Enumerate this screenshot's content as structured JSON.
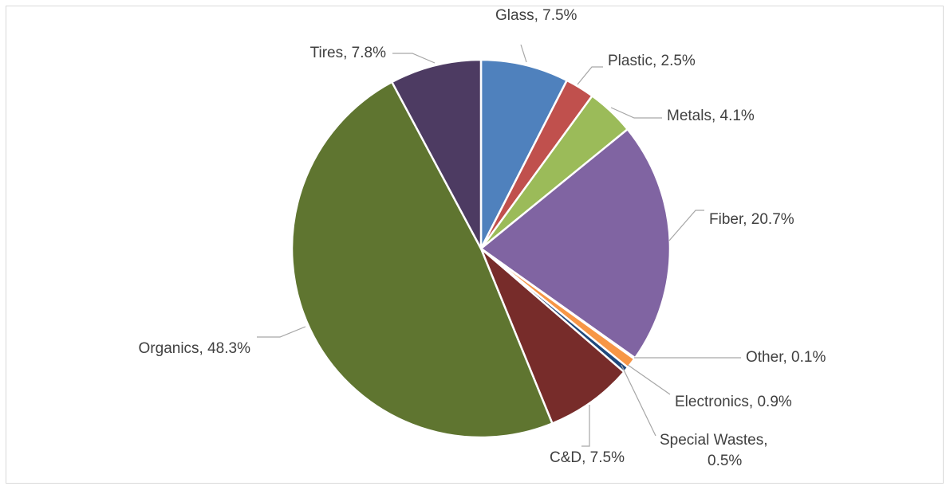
{
  "chart_data": {
    "type": "pie",
    "title": "",
    "categories": [
      "Glass",
      "Plastic",
      "Metals",
      "Fiber",
      "Other",
      "Electronics",
      "Special Wastes",
      "C&D",
      "Organics",
      "Tires"
    ],
    "values": [
      7.5,
      2.5,
      4.1,
      20.7,
      0.1,
      0.9,
      0.5,
      7.5,
      48.3,
      7.8
    ],
    "unit": "%",
    "colors": [
      "#4f81bd",
      "#c0504d",
      "#9bbb59",
      "#8064a2",
      "#4bacc6",
      "#f79646",
      "#1f497d",
      "#772c2a",
      "#5f7530",
      "#4d3b62"
    ],
    "data_labels": [
      [
        "Glass, 7.5%"
      ],
      [
        "Plastic, 2.5%"
      ],
      [
        "Metals, 4.1%"
      ],
      [
        "Fiber, 20.7%"
      ],
      [
        "Other, 0.1%"
      ],
      [
        "Electronics, 0.9%"
      ],
      [
        "Special Wastes,",
        "0.5%"
      ],
      [
        "C&D, 7.5%"
      ],
      [
        "Organics, 48.3%"
      ],
      [
        "Tires, 7.8%"
      ]
    ],
    "legend": "none",
    "start_angle": "12 o'clock",
    "direction": "clockwise"
  }
}
